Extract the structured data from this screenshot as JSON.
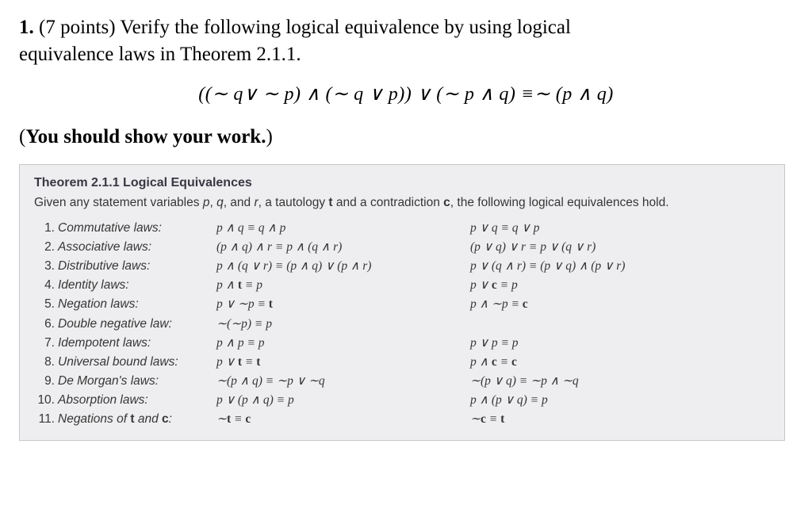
{
  "problem": {
    "number": "1.",
    "points": "(7 points)",
    "text_a": "Verify the following logical equivalence by using logical",
    "text_b": "equivalence laws in Theorem 2.1.1.",
    "equation": "((∼ q∨ ∼ p) ∧ (∼ q ∨ p)) ∨ (∼ p ∧ q) ≡∼ (p ∧ q)",
    "instruction_prefix": "(",
    "instruction_bold": "You should show your work.",
    "instruction_suffix": ")"
  },
  "theorem": {
    "title": "Theorem 2.1.1  Logical Equivalences",
    "intro": "Given any statement variables p, q, and r, a tautology t and a contradiction c, the following logical equivalences hold.",
    "laws": [
      {
        "n": "1.",
        "name": "Commutative laws:",
        "c1": "p ∧ q ≡ q ∧ p",
        "c2": "p ∨ q ≡ q ∨ p"
      },
      {
        "n": "2.",
        "name": "Associative laws:",
        "c1": "(p ∧ q) ∧ r ≡ p ∧ (q ∧ r)",
        "c2": "(p ∨ q) ∨ r ≡ p ∨ (q ∨ r)"
      },
      {
        "n": "3.",
        "name": "Distributive laws:",
        "c1": "p ∧ (q ∨ r) ≡ (p ∧ q) ∨ (p ∧ r)",
        "c2": "p ∨ (q ∧ r) ≡ (p ∨ q) ∧ (p ∨ r)"
      },
      {
        "n": "4.",
        "name": "Identity laws:",
        "c1": "p ∧ t ≡ p",
        "c2": "p ∨ c ≡ p"
      },
      {
        "n": "5.",
        "name": "Negation laws:",
        "c1": "p ∨ ∼p ≡ t",
        "c2": "p ∧ ∼p ≡ c"
      },
      {
        "n": "6.",
        "name": "Double negative law:",
        "c1": "∼(∼p) ≡ p",
        "c2": ""
      },
      {
        "n": "7.",
        "name": "Idempotent laws:",
        "c1": "p ∧ p ≡ p",
        "c2": "p ∨ p ≡ p"
      },
      {
        "n": "8.",
        "name": "Universal bound laws:",
        "c1": "p ∨ t ≡ t",
        "c2": "p ∧ c ≡ c"
      },
      {
        "n": "9.",
        "name": "De Morgan's laws:",
        "c1": "∼(p ∧ q) ≡ ∼p ∨ ∼q",
        "c2": "∼(p ∨ q) ≡ ∼p ∧ ∼q"
      },
      {
        "n": "10.",
        "name": "Absorption laws:",
        "c1": "p ∨ (p ∧ q) ≡ p",
        "c2": "p ∧ (p ∨ q) ≡ p"
      },
      {
        "n": "11.",
        "name": "Negations of t and c:",
        "c1": "∼t ≡ c",
        "c2": "∼c ≡ t"
      }
    ]
  },
  "style": {
    "bg": "#ffffff",
    "text": "#000000",
    "box_bg": "#eeeef0",
    "box_border": "#c8c8c8",
    "box_text": "#363636",
    "title_color": "#383844",
    "problem_fontsize": 25,
    "equation_fontsize": 24,
    "theorem_fontsize": 15.5,
    "name_col_width": 200,
    "c1_col_width": 320
  }
}
